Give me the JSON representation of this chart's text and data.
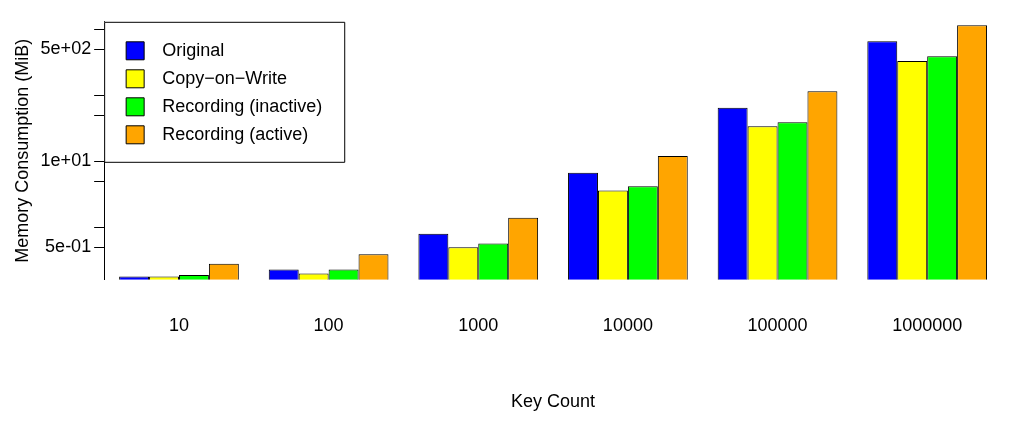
{
  "chart_data": {
    "type": "bar",
    "xlabel": "Key Count",
    "ylabel": "Memory Consumption (MiB)",
    "categories": [
      "10",
      "100",
      "1000",
      "10000",
      "100000",
      "1000000"
    ],
    "series": [
      {
        "name": "Original",
        "color": "#0000ff",
        "values": [
          0.18,
          0.23,
          0.8,
          6.7,
          65,
          660
        ]
      },
      {
        "name": "Copy−on−Write",
        "color": "#ffff00",
        "values": [
          0.18,
          0.2,
          0.5,
          3.6,
          34,
          330
        ]
      },
      {
        "name": "Recording (inactive)",
        "color": "#00ff00",
        "values": [
          0.19,
          0.23,
          0.57,
          4.2,
          39,
          390
        ]
      },
      {
        "name": "Recording (active)",
        "color": "#ffa500",
        "values": [
          0.28,
          0.39,
          1.4,
          12,
          115,
          1150
        ]
      }
    ],
    "log": "y",
    "ylim": [
      0.16,
      1300
    ],
    "yticks": [
      {
        "value": 0.5,
        "label": "5e-01"
      },
      {
        "value": 1,
        "label": null
      },
      {
        "value": 5,
        "label": null
      },
      {
        "value": 10,
        "label": "1e+01"
      },
      {
        "value": 50,
        "label": null
      },
      {
        "value": 100,
        "label": null
      },
      {
        "value": 500,
        "label": "5e+02"
      },
      {
        "value": 1000,
        "label": null
      }
    ],
    "grid": false,
    "legend": "top left"
  }
}
